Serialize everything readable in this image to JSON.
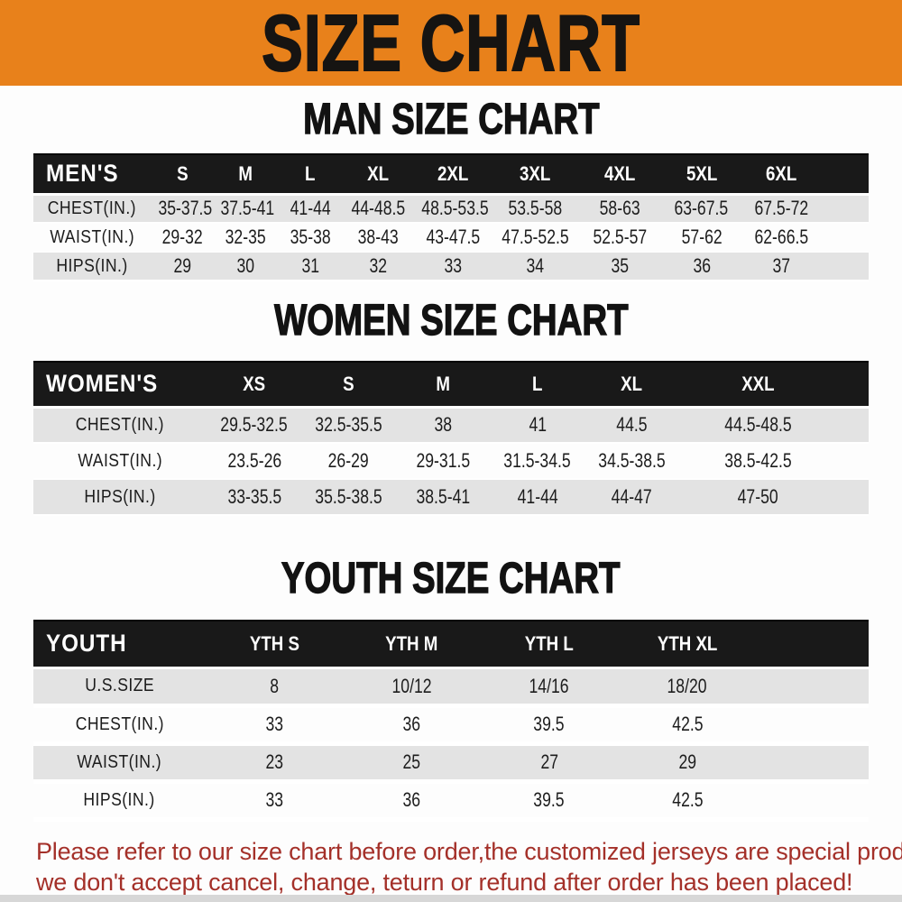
{
  "banner": {
    "title": "SIZE CHART"
  },
  "colors": {
    "banner_bg": "#E8811B",
    "header_bar_bg": "#191919",
    "stripe_gray": "#E3E3E3",
    "footnote_red": "#A43029"
  },
  "sections": [
    {
      "heading": "MAN SIZE CHART",
      "header_label": "MEN'S",
      "columns": [
        "S",
        "M",
        "L",
        "XL",
        "2XL",
        "3XL",
        "4XL",
        "5XL",
        "6XL"
      ],
      "rows": [
        {
          "label": "CHEST(IN.)",
          "values": [
            "35-37.5",
            "37.5-41",
            "41-44",
            "44-48.5",
            "48.5-53.5",
            "53.5-58",
            "58-63",
            "63-67.5",
            "67.5-72"
          ]
        },
        {
          "label": "WAIST(IN.)",
          "values": [
            "29-32",
            "32-35",
            "35-38",
            "38-43",
            "43-47.5",
            "47.5-52.5",
            "52.5-57",
            "57-62",
            "62-66.5"
          ]
        },
        {
          "label": "HIPS(IN.)",
          "values": [
            "29",
            "30",
            "31",
            "32",
            "33",
            "34",
            "35",
            "36",
            "37"
          ]
        }
      ]
    },
    {
      "heading": "WOMEN SIZE CHART",
      "header_label": "WOMEN'S",
      "columns": [
        "XS",
        "S",
        "M",
        "L",
        "XL",
        "XXL"
      ],
      "rows": [
        {
          "label": "CHEST(IN.)",
          "values": [
            "29.5-32.5",
            "32.5-35.5",
            "38",
            "41",
            "44.5",
            "44.5-48.5"
          ]
        },
        {
          "label": "WAIST(IN.)",
          "values": [
            "23.5-26",
            "26-29",
            "29-31.5",
            "31.5-34.5",
            "34.5-38.5",
            "38.5-42.5"
          ]
        },
        {
          "label": "HIPS(IN.)",
          "values": [
            "33-35.5",
            "35.5-38.5",
            "38.5-41",
            "41-44",
            "44-47",
            "47-50"
          ]
        }
      ]
    },
    {
      "heading": "YOUTH SIZE CHART",
      "header_label": "YOUTH",
      "columns": [
        "YTH S",
        "YTH M",
        "YTH L",
        "YTH XL"
      ],
      "rows": [
        {
          "label": "U.S.SIZE",
          "values": [
            "8",
            "10/12",
            "14/16",
            "18/20"
          ]
        },
        {
          "label": "CHEST(IN.)",
          "values": [
            "33",
            "36",
            "39.5",
            "42.5"
          ]
        },
        {
          "label": "WAIST(IN.)",
          "values": [
            "23",
            "25",
            "27",
            "29"
          ]
        },
        {
          "label": "HIPS(IN.)",
          "values": [
            "33",
            "36",
            "39.5",
            "42.5"
          ]
        }
      ]
    }
  ],
  "footnote": {
    "line1": "Please refer to our size chart before order,the customized jerseys are special products,",
    "line2": "we don't accept cancel, change, teturn or refund after order has been placed!"
  }
}
